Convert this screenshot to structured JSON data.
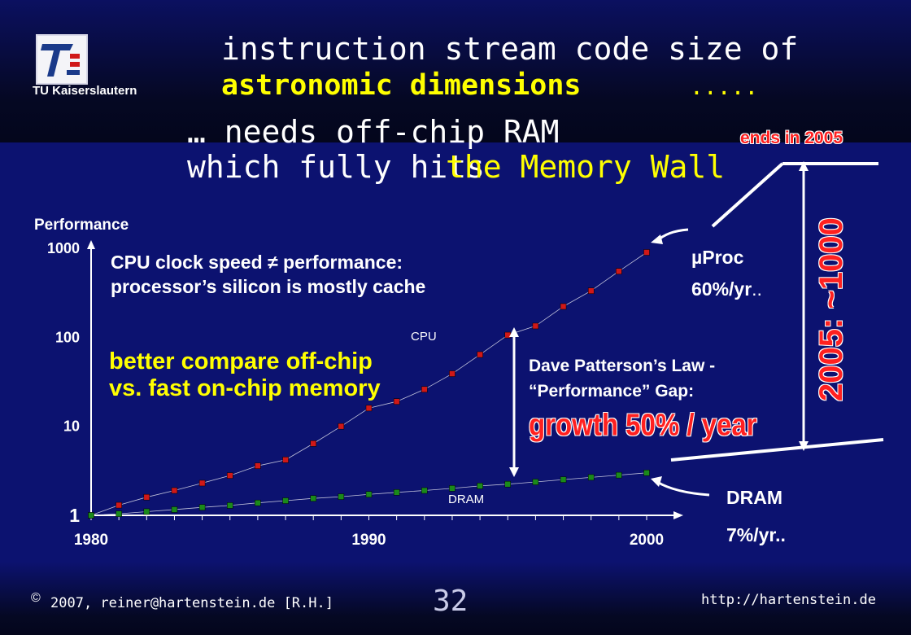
{
  "header": {
    "logo_text": "TU Kaiserslautern",
    "line1": "instruction stream code size of",
    "line2": "astronomic dimensions",
    "line2_dots": ".....",
    "line3": "… needs off-chip RAM",
    "line4a": "which fully hits",
    "line4b": "the Memory Wall"
  },
  "annotations": {
    "ends": "ends in 2005",
    "gap_label": "2005: ~1000",
    "cpu_note_1": "CPU clock speed ≠ performance:",
    "cpu_note_2": "processor’s silicon is mostly cache",
    "compare_1": "better compare off-chip",
    "compare_2": "vs. fast on-chip memory",
    "dp_1": "Dave Patterson’s Law -",
    "dp_2": "“Performance” Gap:",
    "growth": "growth 50% / year",
    "uproc_1": "µProc",
    "uproc_2": "60%/yr",
    "uproc_dots": "..",
    "dram_1": "DRAM",
    "dram_2": "7%/yr.."
  },
  "footer": {
    "copyright_symbol": "©",
    "credit": "2007, reiner@hartenstein.de [R.H.]",
    "page": "32",
    "url": "http://hartenstein.de"
  },
  "colors": {
    "background": "#0c1270",
    "cpu_marker": "#d01818",
    "dram_marker": "#1a8a1a",
    "highlight": "#ffff00",
    "alert": "#ff2020"
  },
  "chart_data": {
    "type": "scatter",
    "ylabel": "Performance",
    "yscale": "log",
    "ylim": [
      1,
      1000
    ],
    "xlim": [
      1980,
      2000
    ],
    "y_ticks": [
      "1",
      "10",
      "100",
      "1000"
    ],
    "x_ticks": [
      "1980",
      "1990",
      "2000"
    ],
    "grid": false,
    "series": [
      {
        "name": "CPU",
        "color": "#d01818",
        "x": [
          1980,
          1981,
          1982,
          1983,
          1984,
          1985,
          1986,
          1987,
          1988,
          1989,
          1990,
          1991,
          1992,
          1993,
          1994,
          1995,
          1996,
          1997,
          1998,
          1999,
          2000
        ],
        "values": [
          1,
          1.3,
          1.6,
          1.9,
          2.3,
          2.8,
          3.6,
          4.2,
          6.4,
          10,
          16,
          19,
          26,
          39,
          64,
          106,
          134,
          222,
          333,
          552,
          900
        ]
      },
      {
        "name": "DRAM",
        "color": "#1a8a1a",
        "x": [
          1980,
          1981,
          1982,
          1983,
          1984,
          1985,
          1986,
          1987,
          1988,
          1989,
          1990,
          1991,
          1992,
          1993,
          1994,
          1995,
          1996,
          1997,
          1998,
          1999,
          2000
        ],
        "values": [
          1,
          1.04,
          1.1,
          1.16,
          1.23,
          1.29,
          1.38,
          1.46,
          1.55,
          1.62,
          1.72,
          1.81,
          1.9,
          2.01,
          2.14,
          2.24,
          2.37,
          2.52,
          2.67,
          2.83,
          3.0
        ]
      }
    ]
  }
}
